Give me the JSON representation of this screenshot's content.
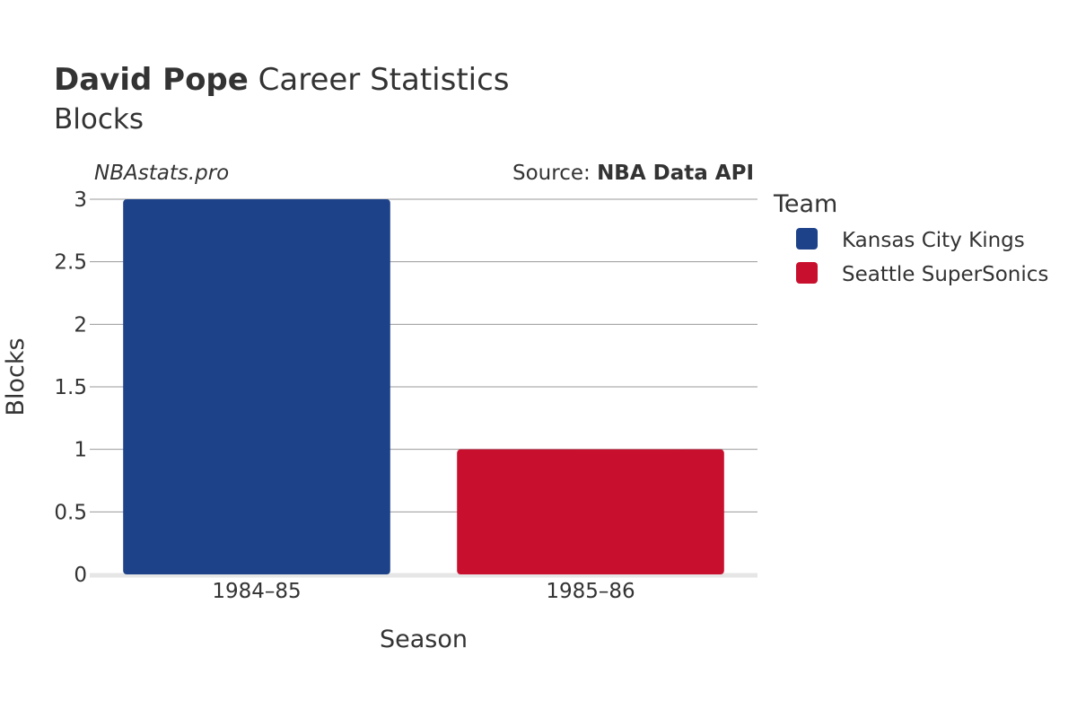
{
  "title": {
    "bold": "David Pope",
    "rest": " Career Statistics"
  },
  "subtitle": "Blocks",
  "watermark": "NBAstats.pro",
  "source": {
    "prefix": "Source: ",
    "name": "NBA Data API"
  },
  "legend": {
    "title": "Team",
    "items": [
      {
        "label": "Kansas City Kings",
        "color": "#1d428a"
      },
      {
        "label": "Seattle SuperSonics",
        "color": "#c8102e"
      }
    ]
  },
  "chart_data": {
    "type": "bar",
    "categories": [
      "1984–85",
      "1985–86"
    ],
    "series": [
      {
        "name": "Kansas City Kings",
        "values": [
          3,
          null
        ],
        "color": "#1d428a"
      },
      {
        "name": "Seattle SuperSonics",
        "values": [
          null,
          1
        ],
        "color": "#c8102e"
      }
    ],
    "xlabel": "Season",
    "ylabel": "Blocks",
    "ylim": [
      0,
      3
    ],
    "yticks": [
      0,
      0.5,
      1,
      1.5,
      2,
      2.5,
      3
    ],
    "ytick_labels": [
      "0",
      "0.5",
      "1",
      "1.5",
      "2",
      "2.5",
      "3"
    ],
    "grid": true,
    "legend_position": "right"
  }
}
